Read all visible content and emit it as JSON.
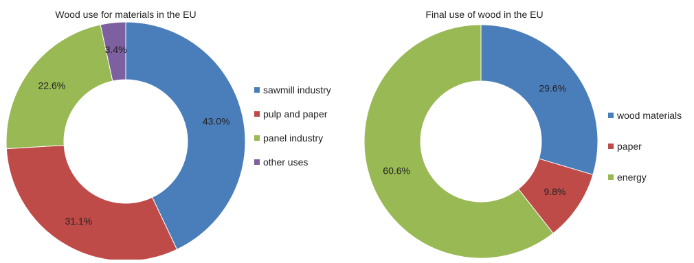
{
  "chart_data": [
    {
      "type": "pie",
      "donut": true,
      "title": "Wood use for materials in the EU",
      "unit": "%",
      "legend_position": "right",
      "series": [
        {
          "name": "",
          "values": [
            {
              "label": "sawmill industry",
              "value": 43.0,
              "display": "43.0%",
              "color": "#4a7ebb"
            },
            {
              "label": "pulp and paper",
              "value": 31.1,
              "display": "31.1%",
              "color": "#be4b48"
            },
            {
              "label": "panel industry",
              "value": 22.6,
              "display": "22.6%",
              "color": "#98b954"
            },
            {
              "label": "other uses",
              "value": 3.4,
              "display": "3.4%",
              "color": "#7d60a0"
            }
          ]
        }
      ]
    },
    {
      "type": "pie",
      "donut": true,
      "title": "Final use of wood in the EU",
      "unit": "%",
      "legend_position": "right",
      "series": [
        {
          "name": "",
          "values": [
            {
              "label": "wood materials",
              "value": 29.6,
              "display": "29.6%",
              "color": "#4a7ebb"
            },
            {
              "label": "paper",
              "value": 9.8,
              "display": "9.8%",
              "color": "#be4b48"
            },
            {
              "label": "energy",
              "value": 60.6,
              "display": "60.6%",
              "color": "#98b954"
            }
          ]
        }
      ]
    }
  ]
}
